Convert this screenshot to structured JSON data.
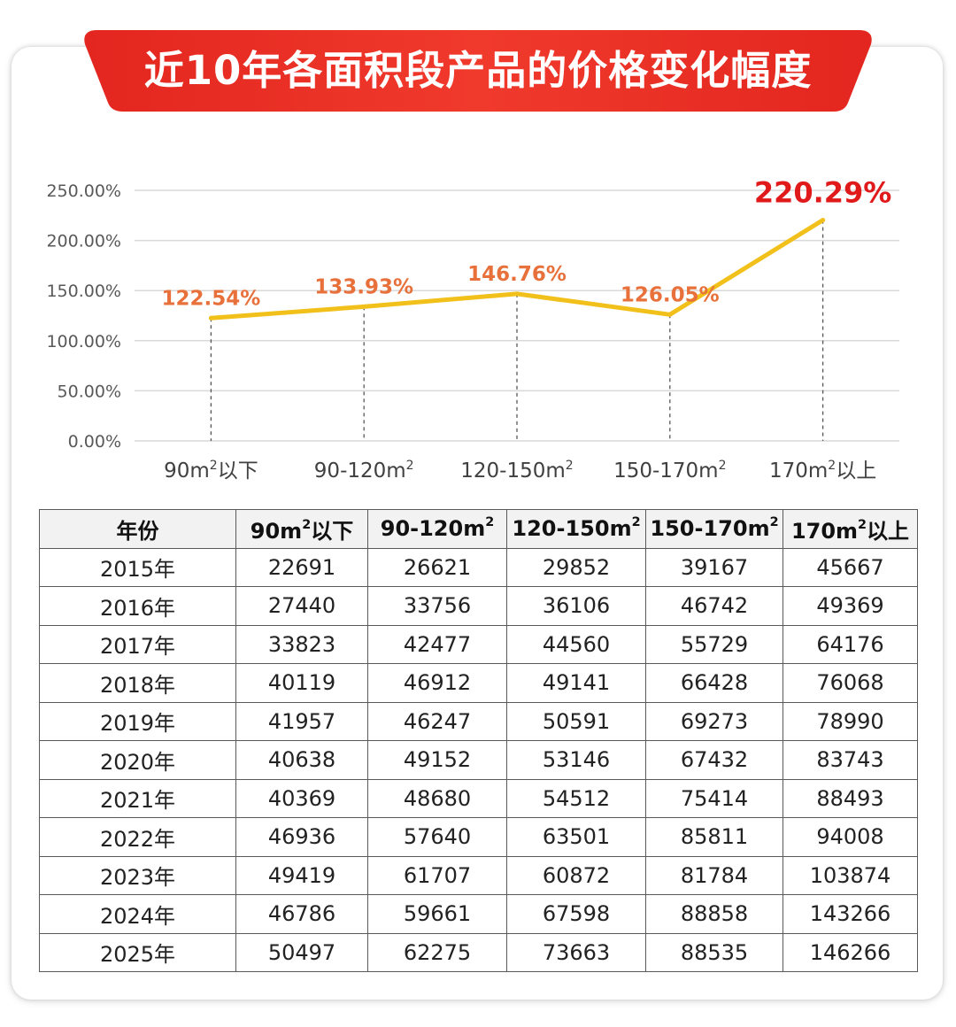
{
  "title": "近10年各面积段产品的价格变化幅度",
  "colors": {
    "banner_start": "#e53226",
    "banner_end": "#f04a35",
    "line": "#f2c01b",
    "data_label": "#e8703a",
    "highlight_label": "#e0191a",
    "grid": "#d9d9d9",
    "axis_text": "#595959"
  },
  "chart_data": {
    "type": "line",
    "categories": [
      "90m²以下",
      "90-120m²",
      "120-150m²",
      "150-170m²",
      "170m²以上"
    ],
    "category_parts": [
      {
        "pre": "90m",
        "sup": "2",
        "post": "以下"
      },
      {
        "pre": "90-120m",
        "sup": "2",
        "post": ""
      },
      {
        "pre": "120-150m",
        "sup": "2",
        "post": ""
      },
      {
        "pre": "150-170m",
        "sup": "2",
        "post": ""
      },
      {
        "pre": "170m",
        "sup": "2",
        "post": "以上"
      }
    ],
    "values": [
      122.54,
      133.93,
      146.76,
      126.05,
      220.29
    ],
    "data_labels": [
      "122.54%",
      "133.93%",
      "146.76%",
      "126.05%",
      "220.29%"
    ],
    "highlight_index": 4,
    "ylim": [
      0,
      250
    ],
    "yticks": [
      0,
      50,
      100,
      150,
      200,
      250
    ],
    "ytick_labels": [
      "0.00%",
      "50.00%",
      "100.00%",
      "150.00%",
      "200.00%",
      "250.00%"
    ],
    "grid": true,
    "legend": "none"
  },
  "table": {
    "headers": [
      {
        "pre": "年份",
        "sup": "",
        "post": ""
      },
      {
        "pre": "90m",
        "sup": "2",
        "post": "以下"
      },
      {
        "pre": "90-120m",
        "sup": "2",
        "post": ""
      },
      {
        "pre": "120-150m",
        "sup": "2",
        "post": ""
      },
      {
        "pre": "150-170m",
        "sup": "2",
        "post": ""
      },
      {
        "pre": "170m",
        "sup": "2",
        "post": "以上"
      }
    ],
    "rows": [
      [
        "2015年",
        "22691",
        "26621",
        "29852",
        "39167",
        "45667"
      ],
      [
        "2016年",
        "27440",
        "33756",
        "36106",
        "46742",
        "49369"
      ],
      [
        "2017年",
        "33823",
        "42477",
        "44560",
        "55729",
        "64176"
      ],
      [
        "2018年",
        "40119",
        "46912",
        "49141",
        "66428",
        "76068"
      ],
      [
        "2019年",
        "41957",
        "46247",
        "50591",
        "69273",
        "78990"
      ],
      [
        "2020年",
        "40638",
        "49152",
        "53146",
        "67432",
        "83743"
      ],
      [
        "2021年",
        "40369",
        "48680",
        "54512",
        "75414",
        "88493"
      ],
      [
        "2022年",
        "46936",
        "57640",
        "63501",
        "85811",
        "94008"
      ],
      [
        "2023年",
        "49419",
        "61707",
        "60872",
        "81784",
        "103874"
      ],
      [
        "2024年",
        "46786",
        "59661",
        "67598",
        "88858",
        "143266"
      ],
      [
        "2025年",
        "50497",
        "62275",
        "73663",
        "88535",
        "146266"
      ]
    ]
  }
}
